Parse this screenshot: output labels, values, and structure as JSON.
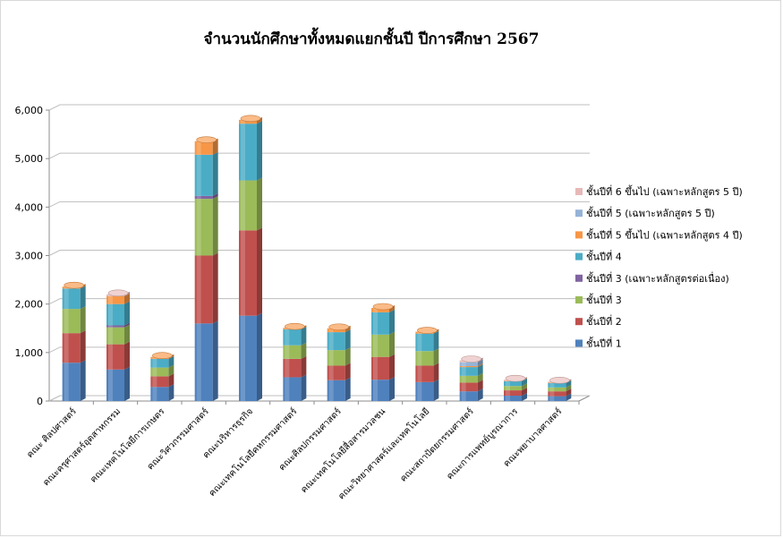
{
  "chart_data": {
    "type": "bar",
    "stacked": true,
    "three_d": true,
    "title": "จำนวนนักศึกษาทั้งหมดแยกชั้นปี  ปีการศึกษา 2567",
    "ylim": [
      0,
      6000
    ],
    "yticks": [
      "0",
      "1,000",
      "2,000",
      "3,000",
      "4,000",
      "5,000",
      "6,000"
    ],
    "ytick_values": [
      0,
      1000,
      2000,
      3000,
      4000,
      5000,
      6000
    ],
    "grid": true,
    "legend_position": "right",
    "categories": [
      "คณะ ศิลปศาสตร์",
      "คณะครุศาสตร์อุตสาหกรรม",
      "คณะเทคโนโลยีการเกษตร",
      "คณะวิศวกรรมศาสตร์",
      "คณะบริหารธุรกิจ",
      "คณะเทคโนโลยีคหกรรมศาสตร์",
      "คณะศิลปกรรมศาสตร์",
      "คณะเทคโนโลยีสื่อสารมวลชน",
      "คณะวิทยาศาสตร์และเทคโนโลยี",
      "คณะสถาปัตยกรรมศาสตร์",
      "คณะการแพทย์บูรณาการ",
      "คณะพยาบาลศาสตร์"
    ],
    "series": [
      {
        "name": "ชั้นปีที่ 1",
        "color": "#4f81bd",
        "values": [
          790,
          650,
          290,
          1600,
          1760,
          490,
          430,
          440,
          390,
          200,
          110,
          100
        ]
      },
      {
        "name": "ชั้นปีที่ 2",
        "color": "#c0504d",
        "values": [
          610,
          520,
          220,
          1400,
          1760,
          380,
          300,
          470,
          340,
          180,
          110,
          100
        ]
      },
      {
        "name": "ชั้นปีที่ 3",
        "color": "#9bbb59",
        "values": [
          500,
          350,
          180,
          1170,
          1030,
          280,
          320,
          460,
          300,
          140,
          90,
          80
        ]
      },
      {
        "name": "ชั้นปีที่ 3  (เฉพาะหลักสูตรต่อเนื่อง)",
        "color": "#8064a2",
        "values": [
          0,
          40,
          0,
          60,
          0,
          0,
          0,
          0,
          0,
          0,
          0,
          0
        ]
      },
      {
        "name": "ชั้นปีที่ 4",
        "color": "#4bacc6",
        "values": [
          420,
          440,
          180,
          850,
          1170,
          330,
          370,
          460,
          360,
          180,
          100,
          90
        ]
      },
      {
        "name": "ชั้นปีที่ 5 ขึ้นไป  (เฉพาะหลักสูตร 4 ปี)",
        "color": "#f79646",
        "values": [
          40,
          160,
          40,
          280,
          80,
          30,
          80,
          90,
          40,
          20,
          10,
          10
        ]
      },
      {
        "name": "ชั้นปีที่ 5 (เฉพาะหลักสูตร 5 ปี)",
        "color": "#95b3d7",
        "values": [
          0,
          0,
          0,
          0,
          0,
          0,
          0,
          0,
          0,
          80,
          0,
          0
        ]
      },
      {
        "name": "ชั้นปีที่ 6 ขึ้นไป  (เฉพาะหลักสูตร 5 ปี)",
        "color": "#e6b9b8",
        "values": [
          0,
          40,
          0,
          0,
          0,
          0,
          0,
          0,
          0,
          40,
          20,
          20
        ]
      }
    ]
  }
}
